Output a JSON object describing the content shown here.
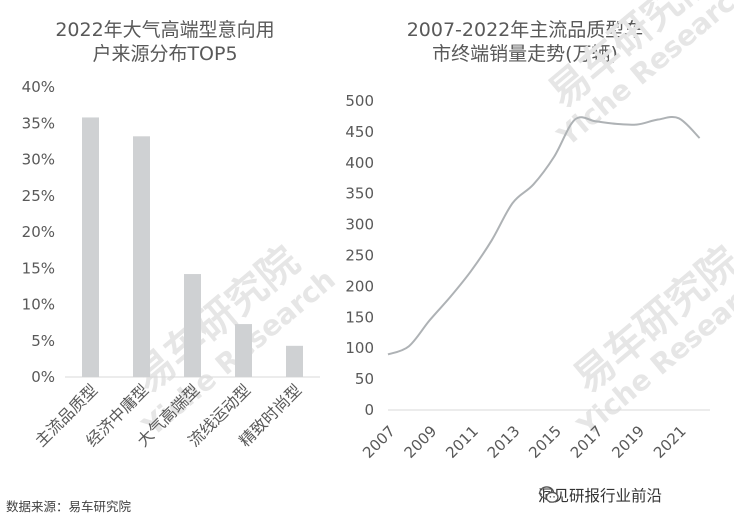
{
  "watermarks": [
    "易车研究院",
    "Yiche Research"
  ],
  "chart_data": [
    {
      "type": "bar",
      "title_lines": [
        "2022年大气高端型意向用",
        "户来源分布TOP5"
      ],
      "categories": [
        "主流品质型",
        "经济中庸型",
        "大气高端型",
        "流线运动型",
        "精致时尚型"
      ],
      "values": [
        35.8,
        33.2,
        14.2,
        7.3,
        4.3
      ],
      "ylim": [
        0,
        40
      ],
      "yticks": [
        "0%",
        "5%",
        "10%",
        "15%",
        "20%",
        "25%",
        "30%",
        "35%",
        "40%"
      ],
      "grid": false,
      "bar_color": "#cfd1d3"
    },
    {
      "type": "line",
      "title_lines": [
        "2007-2022年主流品质型车",
        "市终端销量走势(万辆)"
      ],
      "x": [
        2007,
        2008,
        2009,
        2010,
        2011,
        2012,
        2013,
        2014,
        2015,
        2016,
        2017,
        2018,
        2019,
        2020,
        2021,
        2022
      ],
      "values": [
        90,
        103,
        145,
        183,
        225,
        275,
        335,
        365,
        410,
        470,
        467,
        463,
        462,
        470,
        472,
        440
      ],
      "ylim": [
        0,
        500
      ],
      "yticks": [
        "0",
        "50",
        "100",
        "150",
        "200",
        "250",
        "300",
        "350",
        "400",
        "450",
        "500"
      ],
      "xtick_labels": [
        "2007",
        "2009",
        "2011",
        "2013",
        "2015",
        "2017",
        "2019",
        "2021"
      ],
      "grid": false,
      "line_color": "#aeb2b5"
    }
  ],
  "footer": {
    "source": "数据来源：易车研究院",
    "brand": "洞见研报行业前沿",
    "brand_icon": "wechat-icon"
  }
}
